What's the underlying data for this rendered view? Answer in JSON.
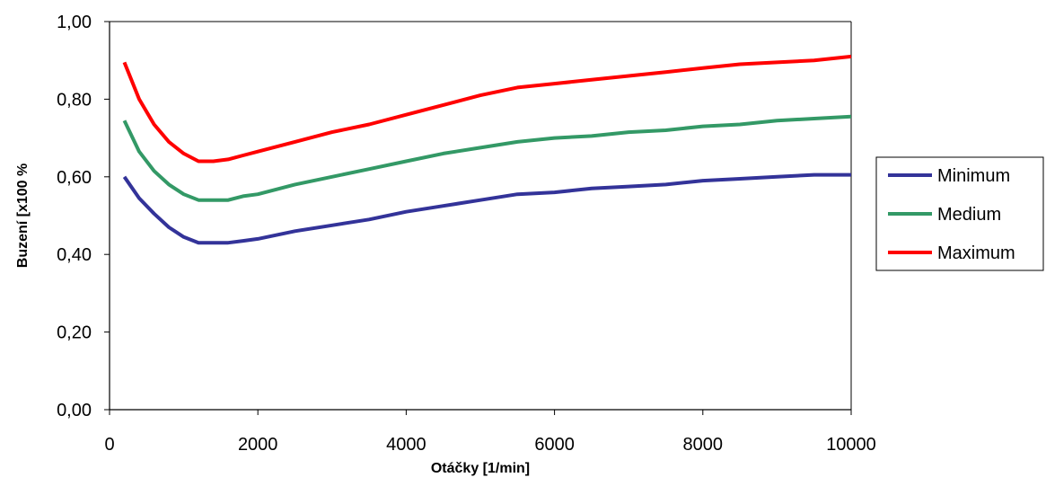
{
  "chart_data": {
    "type": "line",
    "title": "",
    "xlabel": "Otáčky [1/min]",
    "ylabel": "Buzení [x100 %",
    "xlim": [
      0,
      10000
    ],
    "ylim": [
      0,
      1
    ],
    "x_ticks": [
      {
        "value": 0,
        "label": "0"
      },
      {
        "value": 2000,
        "label": "2000"
      },
      {
        "value": 4000,
        "label": "4000"
      },
      {
        "value": 6000,
        "label": "6000"
      },
      {
        "value": 8000,
        "label": "8000"
      },
      {
        "value": 10000,
        "label": "10000"
      }
    ],
    "y_ticks": [
      {
        "value": 0,
        "label": "0,00"
      },
      {
        "value": 0.2,
        "label": "0,20"
      },
      {
        "value": 0.4,
        "label": "0,40"
      },
      {
        "value": 0.6,
        "label": "0,60"
      },
      {
        "value": 0.8,
        "label": "0,80"
      },
      {
        "value": 1.0,
        "label": "1,00"
      }
    ],
    "grid": false,
    "legend_position": "right",
    "x": [
      200,
      400,
      600,
      800,
      1000,
      1200,
      1400,
      1600,
      1800,
      2000,
      2500,
      3000,
      3500,
      4000,
      4500,
      5000,
      5500,
      6000,
      6500,
      7000,
      7500,
      8000,
      8500,
      9000,
      9500,
      10000
    ],
    "series": [
      {
        "name": "Minimum",
        "color": "#333399",
        "values": [
          0.6,
          0.545,
          0.505,
          0.47,
          0.445,
          0.43,
          0.43,
          0.43,
          0.435,
          0.44,
          0.46,
          0.475,
          0.49,
          0.51,
          0.525,
          0.54,
          0.555,
          0.56,
          0.57,
          0.575,
          0.58,
          0.59,
          0.595,
          0.6,
          0.605,
          0.605
        ]
      },
      {
        "name": "Medium",
        "color": "#339966",
        "values": [
          0.745,
          0.665,
          0.615,
          0.58,
          0.555,
          0.54,
          0.54,
          0.54,
          0.55,
          0.555,
          0.58,
          0.6,
          0.62,
          0.64,
          0.66,
          0.675,
          0.69,
          0.7,
          0.705,
          0.715,
          0.72,
          0.73,
          0.735,
          0.745,
          0.75,
          0.755
        ]
      },
      {
        "name": "Maximum",
        "color": "#ff0000",
        "values": [
          0.895,
          0.8,
          0.735,
          0.69,
          0.66,
          0.64,
          0.64,
          0.645,
          0.655,
          0.665,
          0.69,
          0.715,
          0.735,
          0.76,
          0.785,
          0.81,
          0.83,
          0.84,
          0.85,
          0.86,
          0.87,
          0.88,
          0.89,
          0.895,
          0.9,
          0.91
        ]
      }
    ]
  }
}
